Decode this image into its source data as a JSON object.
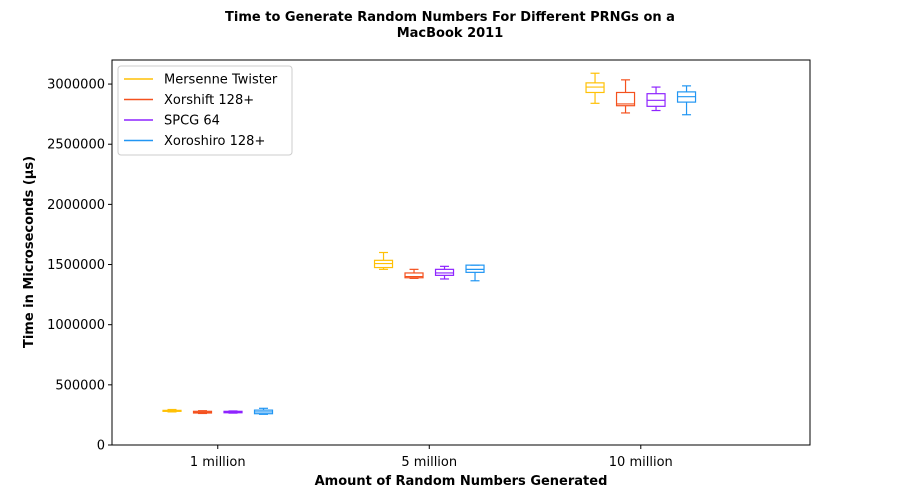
{
  "chart_data": {
    "type": "box",
    "title_lines": [
      "Time to Generate Random Numbers For Different PRNGs on a",
      "MacBook 2011"
    ],
    "xlabel": "Amount of Random Numbers Generated",
    "ylabel": "Time in Microseconds (µs)",
    "categories": [
      "1 million",
      "5 million",
      "10 million"
    ],
    "ylim": [
      0,
      3200000
    ],
    "yticks": [
      0,
      500000,
      1000000,
      1500000,
      2000000,
      2500000,
      3000000
    ],
    "ytick_labels": [
      "0",
      "500000",
      "1000000",
      "1500000",
      "2000000",
      "2500000",
      "3000000"
    ],
    "grid": false,
    "legend_position": "top-left",
    "series": [
      {
        "name": "Mersenne Twister",
        "color": "#FFC107",
        "boxes": [
          {
            "whisker_low": 275000,
            "q1": 280000,
            "median": 284000,
            "q3": 288000,
            "whisker_high": 295000
          },
          {
            "whisker_low": 1460000,
            "q1": 1475000,
            "median": 1508000,
            "q3": 1535000,
            "whisker_high": 1600000
          },
          {
            "whisker_low": 2840000,
            "q1": 2930000,
            "median": 2975000,
            "q3": 3010000,
            "whisker_high": 3090000
          }
        ]
      },
      {
        "name": "Xorshift 128+",
        "color": "#F4511E",
        "boxes": [
          {
            "whisker_low": 262000,
            "q1": 266000,
            "median": 271000,
            "q3": 280000,
            "whisker_high": 285000
          },
          {
            "whisker_low": 1385000,
            "q1": 1390000,
            "median": 1400000,
            "q3": 1430000,
            "whisker_high": 1460000
          },
          {
            "whisker_low": 2760000,
            "q1": 2820000,
            "median": 2835000,
            "q3": 2930000,
            "whisker_high": 3035000
          }
        ]
      },
      {
        "name": "SPCG 64",
        "color": "#8E24FF",
        "boxes": [
          {
            "whisker_low": 265000,
            "q1": 268000,
            "median": 273000,
            "q3": 280000,
            "whisker_high": 283000
          },
          {
            "whisker_low": 1380000,
            "q1": 1410000,
            "median": 1430000,
            "q3": 1460000,
            "whisker_high": 1485000
          },
          {
            "whisker_low": 2780000,
            "q1": 2815000,
            "median": 2865000,
            "q3": 2920000,
            "whisker_high": 2975000
          }
        ]
      },
      {
        "name": "Xoroshiro 128+",
        "color": "#2196F3",
        "boxes": [
          {
            "whisker_low": 255000,
            "q1": 260000,
            "median": 275000,
            "q3": 290000,
            "whisker_high": 305000
          },
          {
            "whisker_low": 1365000,
            "q1": 1435000,
            "median": 1460000,
            "q3": 1495000,
            "whisker_high": 1495000
          },
          {
            "whisker_low": 2745000,
            "q1": 2850000,
            "median": 2895000,
            "q3": 2935000,
            "whisker_high": 2985000
          }
        ]
      }
    ]
  }
}
